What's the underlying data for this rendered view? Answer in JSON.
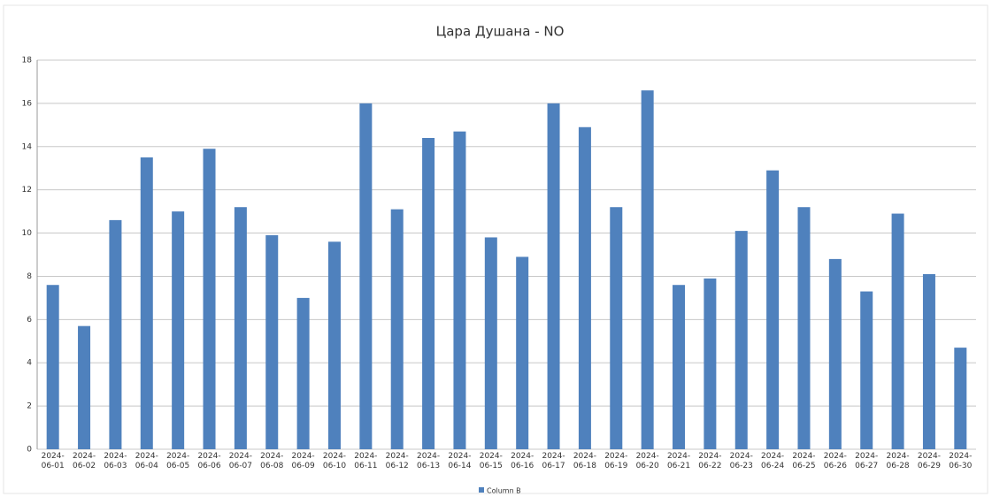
{
  "chart_data": {
    "type": "bar",
    "title": "Цара Душана - NO",
    "categories": [
      "2024-06-01",
      "2024-06-02",
      "2024-06-03",
      "2024-06-04",
      "2024-06-05",
      "2024-06-06",
      "2024-06-07",
      "2024-06-08",
      "2024-06-09",
      "2024-06-10",
      "2024-06-11",
      "2024-06-12",
      "2024-06-13",
      "2024-06-14",
      "2024-06-15",
      "2024-06-16",
      "2024-06-17",
      "2024-06-18",
      "2024-06-19",
      "2024-06-20",
      "2024-06-21",
      "2024-06-22",
      "2024-06-23",
      "2024-06-24",
      "2024-06-25",
      "2024-06-26",
      "2024-06-27",
      "2024-06-28",
      "2024-06-29",
      "2024-06-30"
    ],
    "series": [
      {
        "name": "Column B",
        "color": "#4f81bd",
        "values": [
          7.6,
          5.7,
          10.6,
          13.5,
          11.0,
          13.9,
          11.2,
          9.9,
          7.0,
          9.6,
          16.0,
          11.1,
          14.4,
          14.7,
          9.8,
          8.9,
          16.0,
          14.9,
          11.2,
          16.6,
          7.6,
          7.9,
          10.1,
          12.9,
          11.2,
          8.8,
          7.3,
          10.9,
          8.1,
          4.7
        ]
      }
    ],
    "ylim": [
      0,
      18
    ],
    "yticks": [
      0,
      2,
      4,
      6,
      8,
      10,
      12,
      14,
      16,
      18
    ],
    "grid": true,
    "legend": "bottom"
  }
}
